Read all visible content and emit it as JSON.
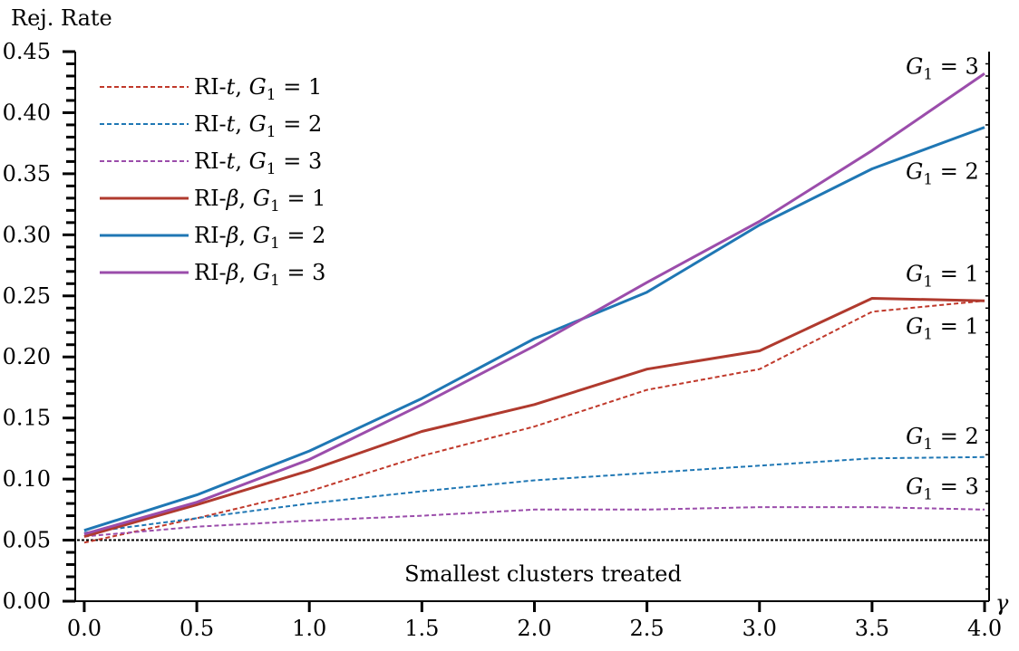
{
  "chart_data": {
    "type": "line",
    "title": "",
    "ylabel": "Rej. Rate",
    "xlabel": "γ",
    "x": [
      0.0,
      0.5,
      1.0,
      1.5,
      2.0,
      2.5,
      3.0,
      3.5,
      4.0
    ],
    "xlim": [
      -0.04,
      4.02
    ],
    "ylim": [
      0.0,
      0.45
    ],
    "xticks": [
      "0.0",
      "0.5",
      "1.0",
      "1.5",
      "2.0",
      "2.5",
      "3.0",
      "3.5",
      "4.0"
    ],
    "yticks": [
      "0.00",
      "0.05",
      "0.10",
      "0.15",
      "0.20",
      "0.25",
      "0.30",
      "0.35",
      "0.40",
      "0.45"
    ],
    "legend_position": "top-left",
    "reference_line": {
      "y": 0.05,
      "label": "Smallest clusters treated",
      "color": "#000000"
    },
    "series": [
      {
        "name": "RI-t, G1 = 1",
        "name_prefix": "RI-",
        "name_symbol": "t",
        "name_g": "G",
        "name_sub": "1",
        "name_rest": " = 1",
        "style": "dashed",
        "color": "#c0392b",
        "values": [
          0.048,
          0.068,
          0.09,
          0.119,
          0.143,
          0.173,
          0.19,
          0.237,
          0.246
        ]
      },
      {
        "name": "RI-t, G1 = 2",
        "name_prefix": "RI-",
        "name_symbol": "t",
        "name_g": "G",
        "name_sub": "1",
        "name_rest": " = 2",
        "style": "dashed",
        "color": "#1f77b4",
        "values": [
          0.056,
          0.068,
          0.08,
          0.09,
          0.099,
          0.105,
          0.111,
          0.117,
          0.118
        ]
      },
      {
        "name": "RI-t, G1 = 3",
        "name_prefix": "RI-",
        "name_symbol": "t",
        "name_g": "G",
        "name_sub": "1",
        "name_rest": " = 3",
        "style": "dashed",
        "color": "#9b4dab",
        "values": [
          0.053,
          0.061,
          0.066,
          0.07,
          0.075,
          0.075,
          0.077,
          0.077,
          0.075
        ]
      },
      {
        "name": "RI-β, G1 = 1",
        "name_prefix": "RI-",
        "name_symbol": "β",
        "name_g": "G",
        "name_sub": "1",
        "name_rest": " = 1",
        "style": "solid",
        "color": "#b03a2e",
        "values": [
          0.053,
          0.079,
          0.107,
          0.139,
          0.161,
          0.19,
          0.205,
          0.248,
          0.246
        ]
      },
      {
        "name": "RI-β, G1 = 2",
        "name_prefix": "RI-",
        "name_symbol": "β",
        "name_g": "G",
        "name_sub": "1",
        "name_rest": " = 2",
        "style": "solid",
        "color": "#1f77b4",
        "values": [
          0.058,
          0.087,
          0.123,
          0.166,
          0.215,
          0.253,
          0.308,
          0.354,
          0.388
        ]
      },
      {
        "name": "RI-β, G1 = 3",
        "name_prefix": "RI-",
        "name_symbol": "β",
        "name_g": "G",
        "name_sub": "1",
        "name_rest": " = 3",
        "style": "solid",
        "color": "#9b4dab",
        "values": [
          0.055,
          0.081,
          0.116,
          0.161,
          0.209,
          0.261,
          0.311,
          0.369,
          0.432
        ]
      }
    ],
    "annotations": [
      {
        "g": "G",
        "sub": "1",
        "rest": " = 3",
        "x": 3.65,
        "y": 0.432
      },
      {
        "g": "G",
        "sub": "1",
        "rest": " = 2",
        "x": 3.65,
        "y": 0.346
      },
      {
        "g": "G",
        "sub": "1",
        "rest": " = 1",
        "x": 3.65,
        "y": 0.262
      },
      {
        "g": "G",
        "sub": "1",
        "rest": " = 1",
        "x": 3.65,
        "y": 0.219
      },
      {
        "g": "G",
        "sub": "1",
        "rest": " = 2",
        "x": 3.65,
        "y": 0.129
      },
      {
        "g": "G",
        "sub": "1",
        "rest": " = 3",
        "x": 3.65,
        "y": 0.088
      }
    ]
  }
}
